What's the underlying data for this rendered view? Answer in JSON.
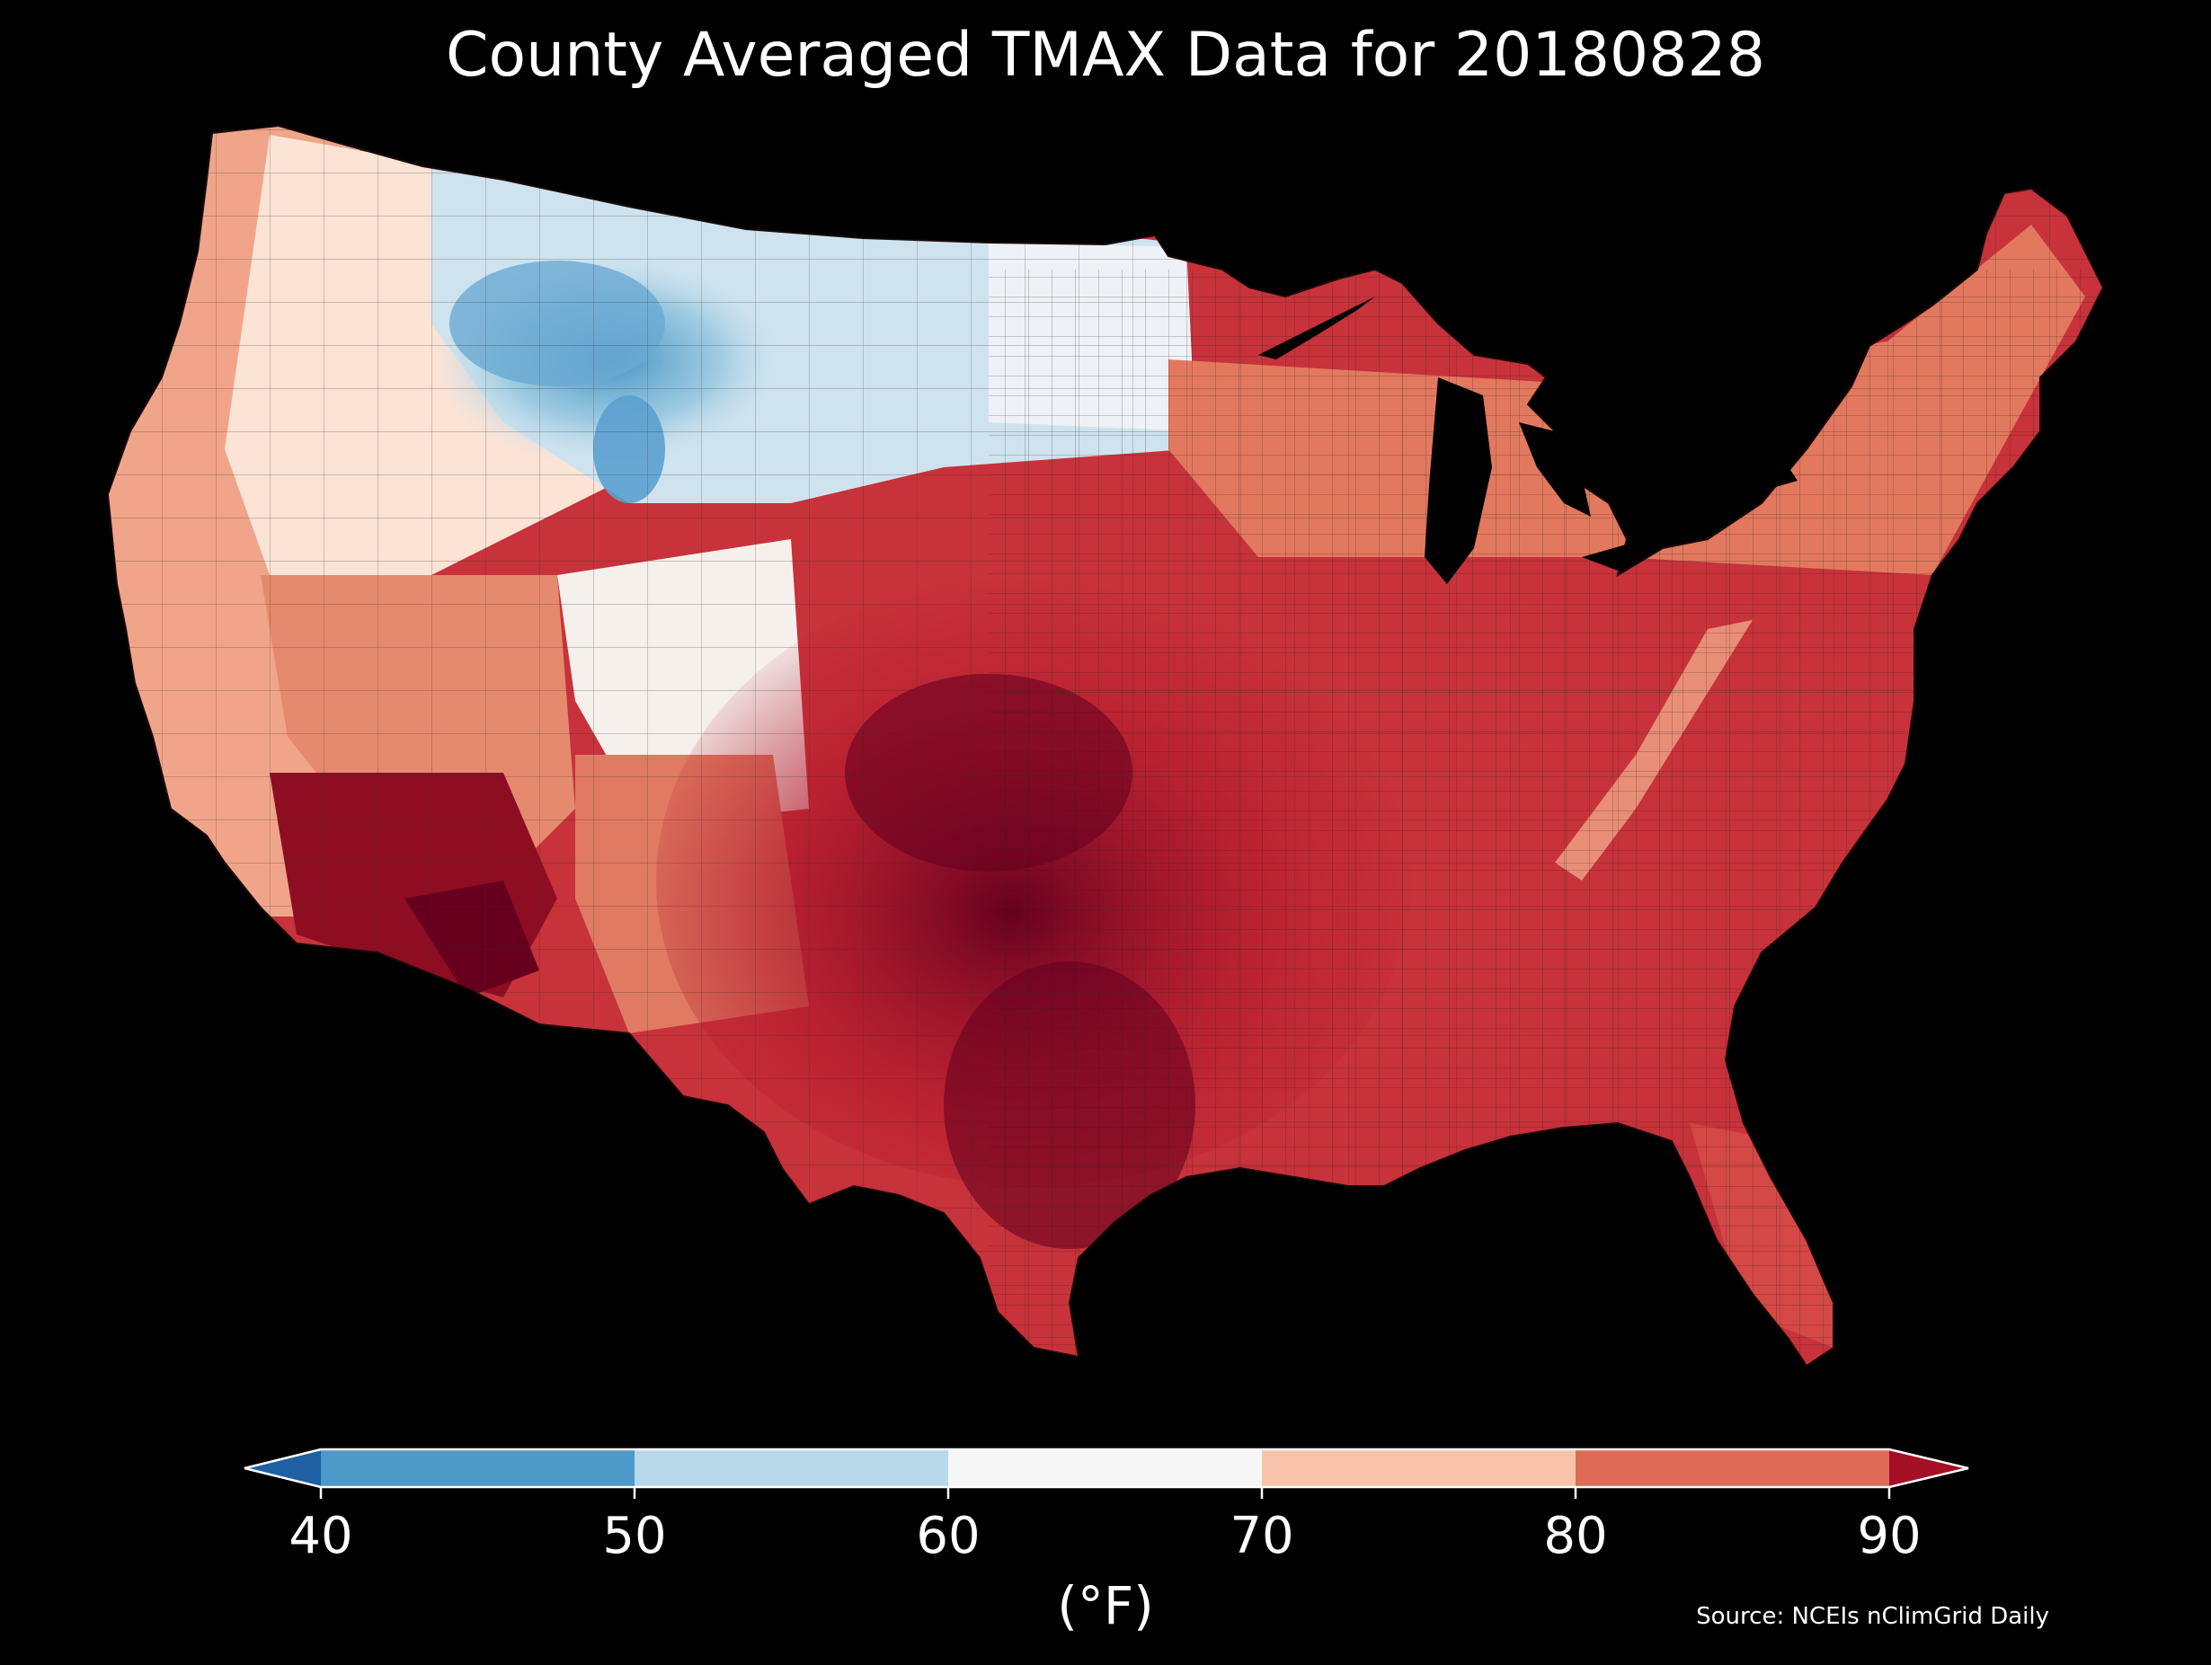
{
  "title": "County Averaged TMAX Data for 20180828",
  "colorbar": {
    "ticks": [
      "40",
      "50",
      "60",
      "70",
      "80",
      "90"
    ],
    "unit": "(°F)",
    "bins": [
      {
        "from": 40,
        "to": 50,
        "color": "#4d99c8"
      },
      {
        "from": 50,
        "to": 60,
        "color": "#b9d8ea"
      },
      {
        "from": 60,
        "to": 70,
        "color": "#f6f6f6"
      },
      {
        "from": 70,
        "to": 80,
        "color": "#f8c3a8"
      },
      {
        "from": 80,
        "to": 90,
        "color": "#dc6b58"
      }
    ],
    "under_color": "#1f5fa3",
    "over_color": "#a50f26"
  },
  "source": "Source: NCEIs nClimGrid Daily",
  "map_colors": {
    "ocean": "#000000",
    "great_lakes": "#000000",
    "county_line": "#2a1a1a"
  }
}
